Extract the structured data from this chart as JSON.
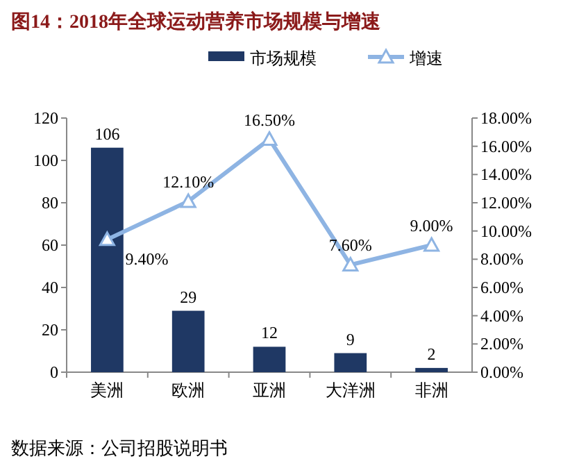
{
  "chart_data": {
    "type": "bar",
    "title": "图14：2018年全球运动营养市场规模与增速",
    "categories": [
      "美洲",
      "欧洲",
      "亚洲",
      "大洋洲",
      "非洲"
    ],
    "series": [
      {
        "name": "市场规模",
        "color": "#1f3864",
        "values": [
          106,
          29,
          12,
          9,
          2
        ],
        "value_labels": [
          "106",
          "29",
          "12",
          "9",
          "2"
        ]
      },
      {
        "name": "增速",
        "type": "line",
        "axis": "y2",
        "color": "#8eb4e3",
        "marker": "triangle",
        "values": [
          9.4,
          12.1,
          16.5,
          7.6,
          9.0
        ],
        "value_labels": [
          "9.40%",
          "12.10%",
          "16.50%",
          "7.60%",
          "9.00%"
        ]
      }
    ],
    "ylim": [
      0,
      120
    ],
    "yticks": [
      0,
      20,
      40,
      60,
      80,
      100,
      120
    ],
    "y2lim": [
      0,
      18
    ],
    "y2ticks": [
      {
        "value": 0,
        "label": "0.00%"
      },
      {
        "value": 2,
        "label": "2.00%"
      },
      {
        "value": 4,
        "label": "4.00%"
      },
      {
        "value": 6,
        "label": "6.00%"
      },
      {
        "value": 8,
        "label": "8.00%"
      },
      {
        "value": 10,
        "label": "10.00%"
      },
      {
        "value": 12,
        "label": "12.00%"
      },
      {
        "value": 14,
        "label": "14.00%"
      },
      {
        "value": 16,
        "label": "16.00%"
      },
      {
        "value": 18,
        "label": "18.00%"
      }
    ],
    "legend": "top",
    "grid": false,
    "annotations": [
      "数据来源：公司招股说明书"
    ]
  }
}
